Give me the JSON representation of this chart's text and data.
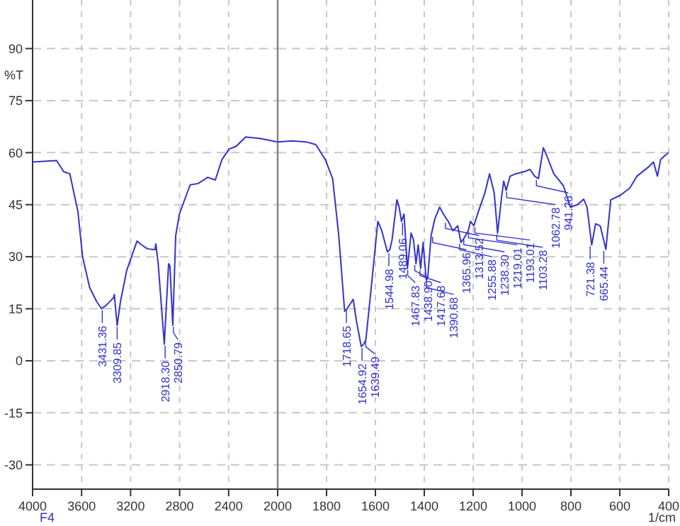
{
  "chart_data": [
    {
      "type": "line",
      "ylabel": "%T",
      "xlim": [
        4000,
        2000
      ],
      "ylim": [
        -37,
        104
      ],
      "xticks": [
        4000,
        3600,
        3200,
        2800,
        2400,
        2000
      ],
      "yticks": [
        -30,
        -15,
        0,
        15,
        30,
        45,
        60,
        75,
        90
      ],
      "grid": true,
      "series": [
        {
          "color": "#3333cc",
          "x": [
            4000,
            3804,
            3746,
            3696,
            3630,
            3592,
            3534,
            3476,
            3437,
            3399,
            3341,
            3333,
            3310,
            3283,
            3233,
            3148,
            3110,
            3064,
            3002,
            2994,
            2975,
            2925,
            2890,
            2879,
            2856,
            2832,
            2802,
            2724,
            2713,
            2649,
            2570,
            2509,
            2455,
            2397,
            2339,
            2262,
            2147,
            2000
          ],
          "values": [
            57.3,
            57.7,
            54.5,
            53.9,
            43,
            30,
            21.1,
            17,
            15,
            16,
            18.1,
            19.1,
            10.2,
            17,
            25.9,
            34.5,
            33.4,
            32.3,
            32,
            33.7,
            28,
            4.8,
            28,
            27.3,
            10.2,
            36.1,
            42.3,
            49.8,
            50.7,
            51.1,
            52.9,
            52.1,
            58,
            61,
            61.8,
            64.5,
            64.1,
            63.1
          ]
        }
      ],
      "annotations": [
        {
          "text": "3431.36",
          "x": 3431.36,
          "y": 15
        },
        {
          "text": "3309.85",
          "x": 3309.85,
          "y": 10.2
        },
        {
          "text": "2918.30",
          "x": 2918.3,
          "y": 4.8
        },
        {
          "text": "2850.79",
          "x": 2850.79,
          "y": 10.2
        },
        "F4"
      ]
    },
    {
      "type": "line",
      "xlabel": "1/cm",
      "xlim": [
        2000,
        400
      ],
      "ylim": [
        -37,
        104
      ],
      "xticks": [
        1800,
        1600,
        1400,
        1200,
        1000,
        800,
        600,
        400
      ],
      "yticks": [
        -30,
        -15,
        0,
        15,
        30,
        45,
        60,
        75,
        90
      ],
      "grid": true,
      "tick_labels": "x",
      "series": [
        {
          "color": "#3333cc",
          "x": [
            2000,
            1940,
            1883,
            1844,
            1805,
            1775,
            1750,
            1726,
            1716,
            1691,
            1678,
            1658,
            1648,
            1639,
            1619,
            1590,
            1574,
            1551,
            1541,
            1532,
            1512,
            1503,
            1493,
            1483,
            1469,
            1454,
            1444,
            1434,
            1425,
            1415,
            1405,
            1392,
            1386,
            1372,
            1357,
            1337,
            1322,
            1302,
            1283,
            1263,
            1250,
            1236,
            1220,
            1211,
            1197,
            1182,
            1152,
            1133,
            1114,
            1100,
            1084,
            1075,
            1065,
            1049,
            1026,
            987,
            968,
            948,
            933,
            913,
            900,
            870,
            831,
            802,
            773,
            748,
            734,
            715,
            699,
            680,
            657,
            637,
            598,
            559,
            530,
            482,
            462,
            446,
            433,
            413,
            400
          ],
          "values": [
            63.1,
            63.4,
            63.1,
            62.3,
            58,
            52.5,
            36.1,
            14.3,
            15,
            17.7,
            11.6,
            4.1,
            4.8,
            6.1,
            19.8,
            40.2,
            37.5,
            31.4,
            32,
            34.8,
            46.4,
            44.3,
            40.2,
            42.3,
            26.6,
            36.8,
            34.8,
            28,
            33.4,
            26.6,
            34.1,
            23.2,
            23.9,
            36.1,
            40.9,
            44.3,
            42.3,
            40.2,
            37.5,
            38.9,
            34.1,
            35.5,
            37.5,
            40.2,
            38.9,
            42.3,
            48.4,
            53.9,
            48.4,
            36.8,
            47,
            51.8,
            49.1,
            53.2,
            53.9,
            54.6,
            55.2,
            53.2,
            52.5,
            61.4,
            59.3,
            53.9,
            50.5,
            44.3,
            45,
            46.6,
            44.3,
            33.4,
            39.5,
            38.9,
            32.1,
            46.4,
            47.7,
            49.8,
            53.2,
            55.9,
            57.3,
            53.2,
            58,
            59.3,
            60
          ]
        }
      ],
      "annotations": [
        {
          "text": "1718.65",
          "x": 1718.65,
          "y": 15
        },
        {
          "text": "1654.92",
          "x": 1654.92,
          "y": 4.1
        },
        {
          "text": "1639.49",
          "x": 1639.49,
          "y": 6.1
        },
        {
          "text": "1544.98",
          "x": 1544.98,
          "y": 31.4
        },
        {
          "text": "1489.06",
          "x": 1489.06,
          "y": 40.2
        },
        {
          "text": "1467.83",
          "x": 1467.83,
          "y": 26.6
        },
        {
          "text": "1438.90",
          "x": 1438.9,
          "y": 28
        },
        {
          "text": "1417.68",
          "x": 1417.68,
          "y": 26.6
        },
        {
          "text": "1390.68",
          "x": 1390.68,
          "y": 23.2
        },
        {
          "text": "1365.96",
          "x": 1365.96,
          "y": 36.1
        },
        {
          "text": "1313.52",
          "x": 1313.52,
          "y": 40.2
        },
        {
          "text": "1255.88",
          "x": 1255.88,
          "y": 34.1
        },
        {
          "text": "1238.30",
          "x": 1238.3,
          "y": 35.5
        },
        {
          "text": "1219.01",
          "x": 1219.01,
          "y": 37.5
        },
        {
          "text": "1193.01",
          "x": 1193.01,
          "y": 38.9
        },
        {
          "text": "1103.28",
          "x": 1103.28,
          "y": 36.8
        },
        {
          "text": "1062.78",
          "x": 1062.78,
          "y": 49.1
        },
        {
          "text": "941.26",
          "x": 941.26,
          "y": 52.5
        },
        {
          "text": "721.38",
          "x": 721.38,
          "y": 33.4
        },
        {
          "text": "665.44",
          "x": 665.44,
          "y": 32.1
        }
      ]
    }
  ]
}
